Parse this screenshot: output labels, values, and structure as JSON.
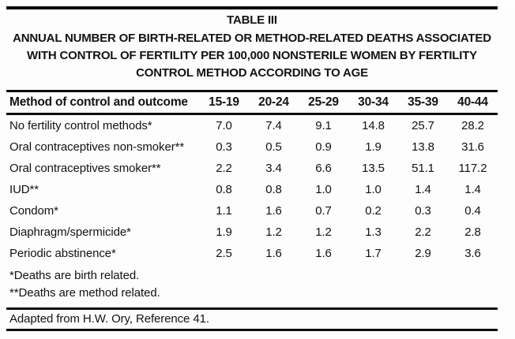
{
  "page": {
    "title": "TABLE III",
    "subtitle_lines": [
      "ANNUAL NUMBER OF BIRTH-RELATED OR METHOD-RELATED DEATHS ASSOCIATED",
      "WITH CONTROL OF FERTILITY PER 100,000 NONSTERILE WOMEN BY FERTILITY",
      "CONTROL METHOD ACCORDING TO AGE"
    ]
  },
  "table": {
    "header": [
      "Method of control and outcome",
      "15-19",
      "20-24",
      "25-29",
      "30-34",
      "35-39",
      "40-44"
    ],
    "rows": [
      {
        "label": "No fertility control methods*",
        "values": [
          "7.0",
          "7.4",
          "9.1",
          "14.8",
          "25.7",
          "28.2"
        ]
      },
      {
        "label": "Oral contraceptives non-smoker**",
        "values": [
          "0.3",
          "0.5",
          "0.9",
          "1.9",
          "13.8",
          "31.6"
        ]
      },
      {
        "label": "Oral contraceptives smoker**",
        "values": [
          "2.2",
          "3.4",
          "6.6",
          "13.5",
          "51.1",
          "117.2"
        ]
      },
      {
        "label": "IUD**",
        "values": [
          "0.8",
          "0.8",
          "1.0",
          "1.0",
          "1.4",
          "1.4"
        ]
      },
      {
        "label": "Condom*",
        "values": [
          "1.1",
          "1.6",
          "0.7",
          "0.2",
          "0.3",
          "0.4"
        ]
      },
      {
        "label": "Diaphragm/spermicide*",
        "values": [
          "1.9",
          "1.2",
          "1.2",
          "1.3",
          "2.2",
          "2.8"
        ]
      },
      {
        "label": "Periodic abstinence*",
        "values": [
          "2.5",
          "1.6",
          "1.6",
          "1.7",
          "2.9",
          "3.6"
        ]
      }
    ],
    "footnotes": [
      "*Deaths are birth related.",
      "**Deaths are method related."
    ],
    "source": "Adapted from H.W. Ory, Reference 41."
  },
  "chart_data": {
    "type": "table",
    "title": "TABLE III — ANNUAL NUMBER OF BIRTH-RELATED OR METHOD-RELATED DEATHS ASSOCIATED WITH CONTROL OF FERTILITY PER 100,000 NONSTERILE WOMEN BY FERTILITY CONTROL METHOD ACCORDING TO AGE",
    "categories": [
      "15-19",
      "20-24",
      "25-29",
      "30-34",
      "35-39",
      "40-44"
    ],
    "series": [
      {
        "name": "No fertility control methods*",
        "values": [
          7.0,
          7.4,
          9.1,
          14.8,
          25.7,
          28.2
        ]
      },
      {
        "name": "Oral contraceptives non-smoker**",
        "values": [
          0.3,
          0.5,
          0.9,
          1.9,
          13.8,
          31.6
        ]
      },
      {
        "name": "Oral contraceptives smoker**",
        "values": [
          2.2,
          3.4,
          6.6,
          13.5,
          51.1,
          117.2
        ]
      },
      {
        "name": "IUD**",
        "values": [
          0.8,
          0.8,
          1.0,
          1.0,
          1.4,
          1.4
        ]
      },
      {
        "name": "Condom*",
        "values": [
          1.1,
          1.6,
          0.7,
          0.2,
          0.3,
          0.4
        ]
      },
      {
        "name": "Diaphragm/spermicide*",
        "values": [
          1.9,
          1.2,
          1.2,
          1.3,
          2.2,
          2.8
        ]
      },
      {
        "name": "Periodic abstinence*",
        "values": [
          2.5,
          1.6,
          1.6,
          1.7,
          2.9,
          3.6
        ]
      }
    ],
    "notes": [
      "*Deaths are birth related.",
      "**Deaths are method related.",
      "Adapted from H.W. Ory, Reference 41."
    ]
  }
}
